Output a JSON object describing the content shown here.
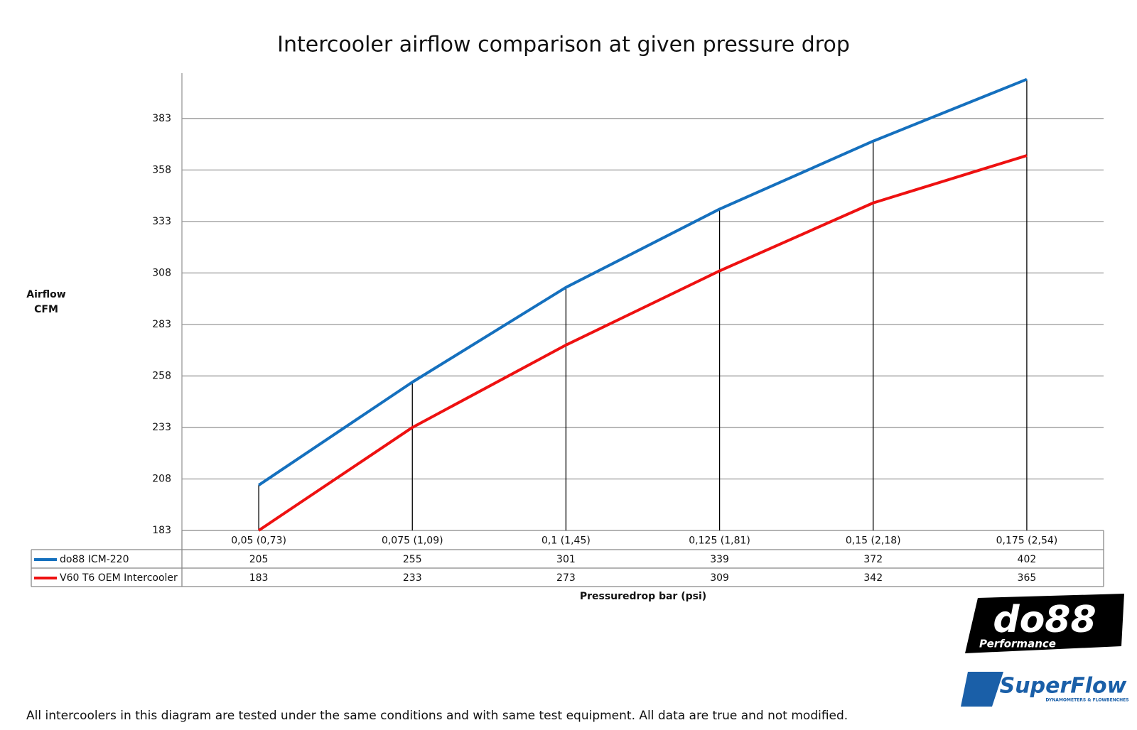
{
  "chart_data": {
    "type": "line",
    "title": "Intercooler airflow comparison at given pressure drop",
    "ylabel": [
      "Airflow",
      "CFM"
    ],
    "xlabel": "Pressuredrop bar (psi)",
    "categories": [
      "0,05 (0,73)",
      "0,075 (1,09)",
      "0,1 (1,45)",
      "0,125 (1,81)",
      "0,15 (2,18)",
      "0,175 (2,54)"
    ],
    "series": [
      {
        "name": "do88 ICM-220",
        "color": "#1570be",
        "values": [
          205,
          255,
          301,
          339,
          372,
          402
        ]
      },
      {
        "name": "V60 T6 OEM Intercooler",
        "color": "#ee1111",
        "values": [
          183,
          233,
          273,
          309,
          342,
          365
        ]
      }
    ],
    "ylim": [
      183,
      405
    ],
    "yticks": [
      183,
      208,
      233,
      258,
      283,
      308,
      333,
      358,
      383
    ],
    "grid": true,
    "drop_lines": true,
    "data_table": true,
    "footnote": "All intercoolers in this diagram are tested under the same conditions and with same test equipment. All data are true and not modified."
  },
  "logos": {
    "do88": "do88",
    "do88_sub": "Performance",
    "superflow": "SuperFlow",
    "superflow_sub": "DYNAMOMETERS & FLOWBENCHES"
  }
}
